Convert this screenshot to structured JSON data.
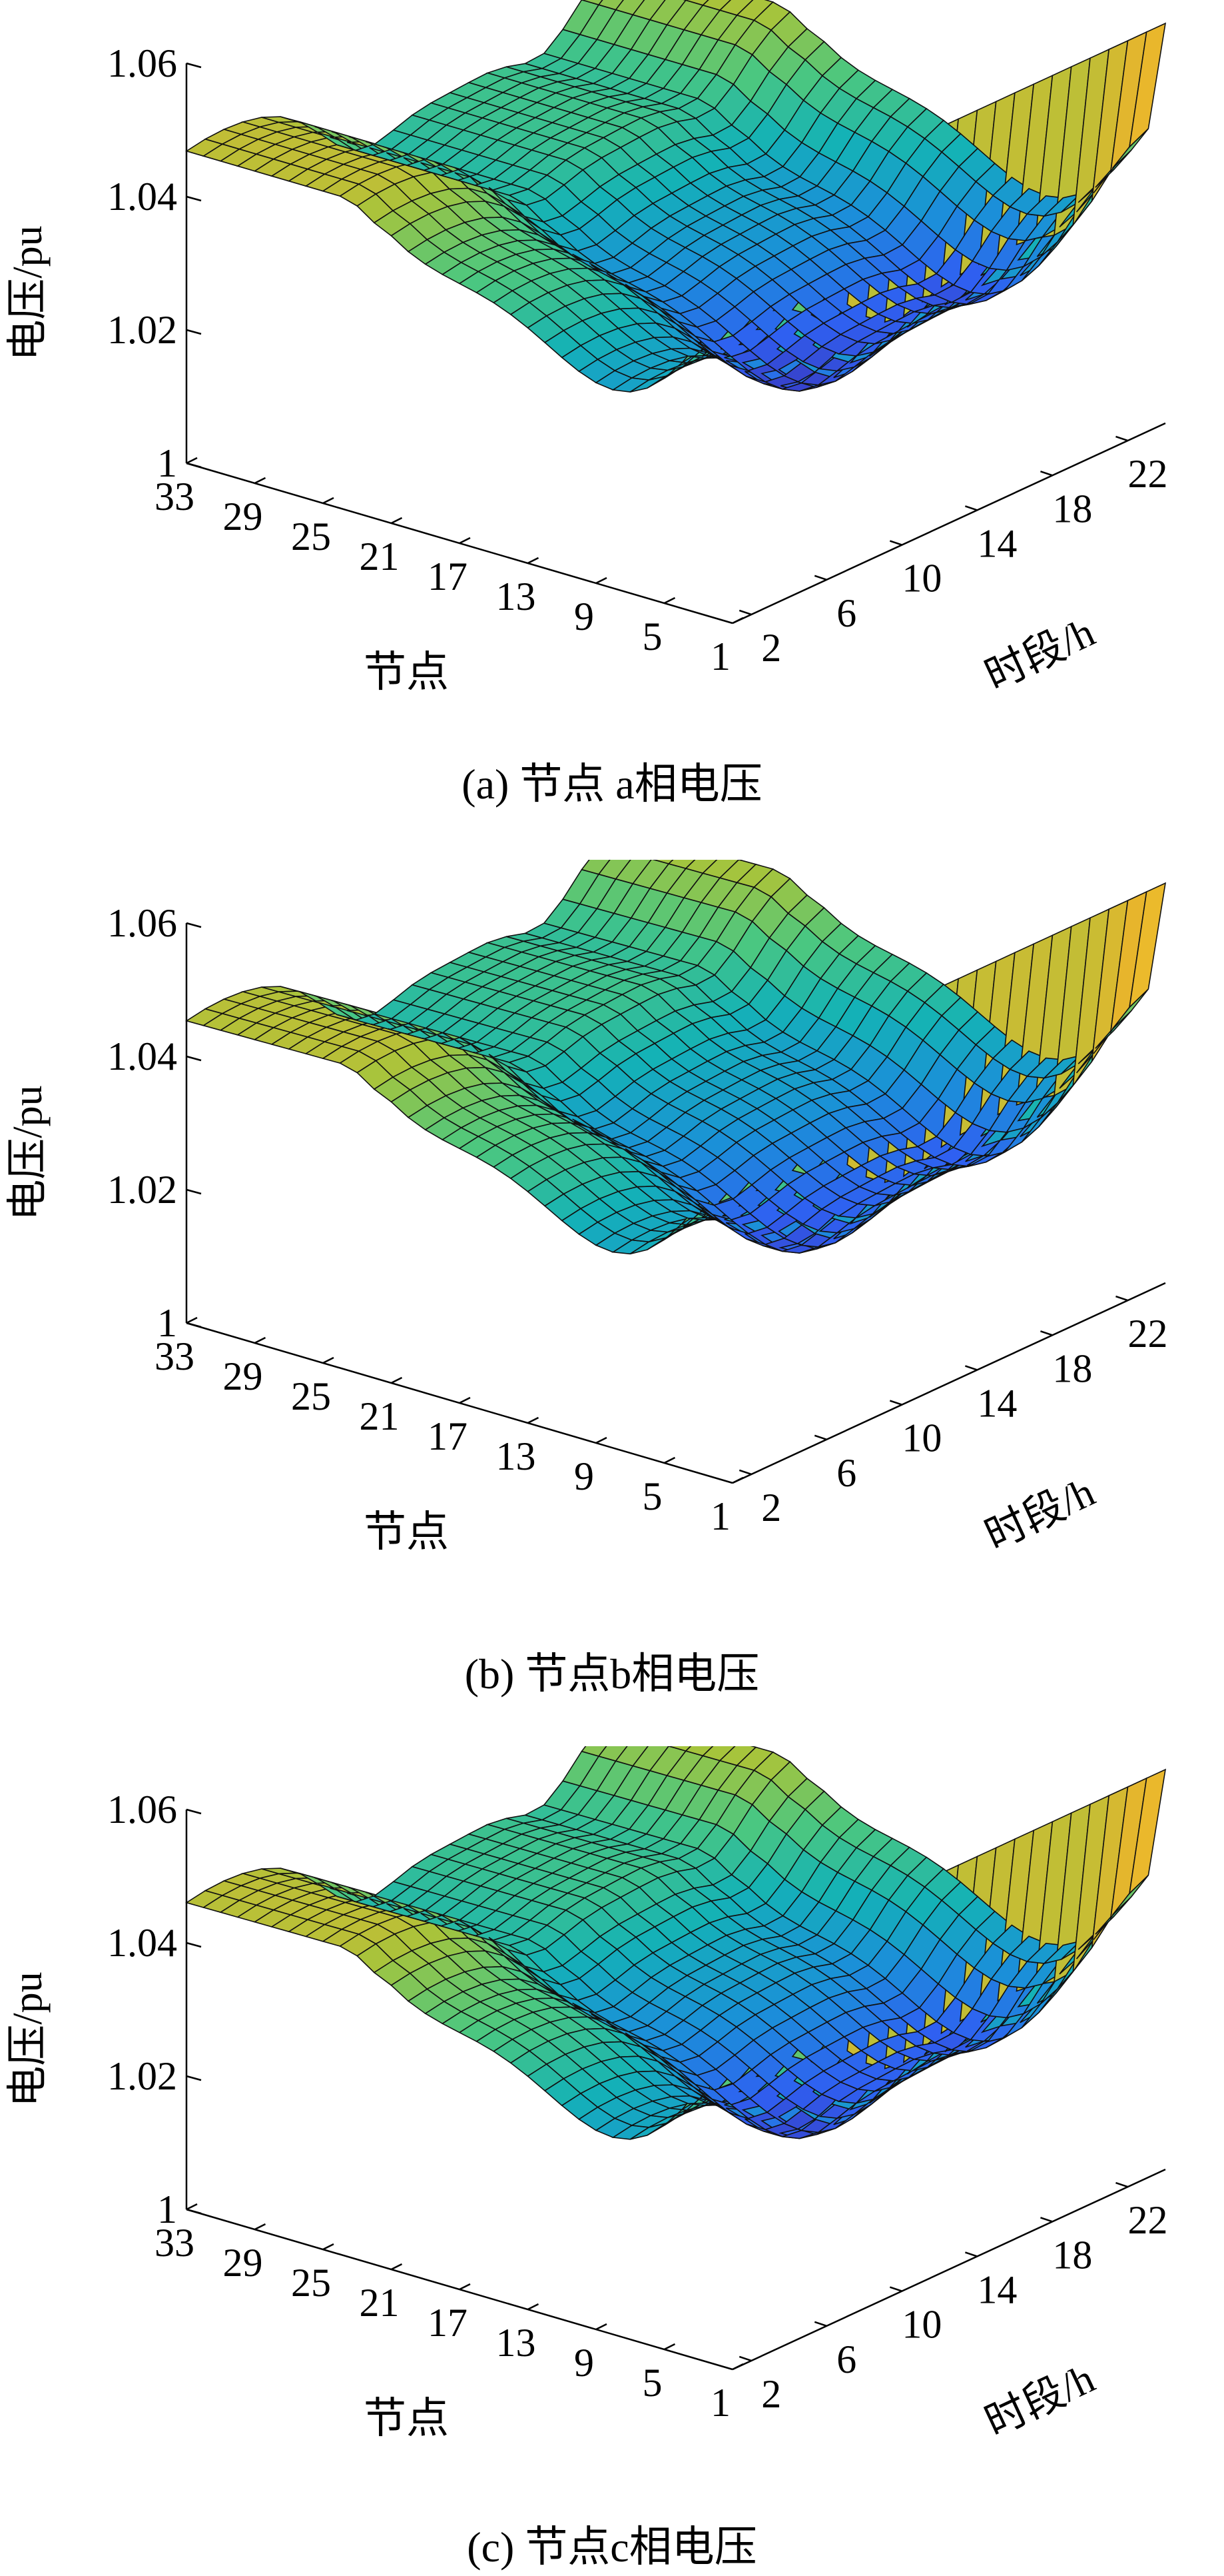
{
  "chart_data": [
    {
      "type": "surface",
      "caption": "(a) 节点 a相电压",
      "zlabel": "电压/pu",
      "xlabel": "节点",
      "ylabel": "时段/h",
      "zlim": [
        1,
        1.06
      ],
      "z_ticks": [
        "1",
        "1.02",
        "1.04",
        "1.06"
      ],
      "node_ticks": [
        "33",
        "29",
        "25",
        "21",
        "17",
        "13",
        "9",
        "5",
        "1"
      ],
      "time_ticks": [
        "2",
        "6",
        "10",
        "14",
        "18",
        "22"
      ],
      "node_range": [
        1,
        33
      ],
      "time_range": [
        1,
        24
      ],
      "voltage_at_node1": 1.06,
      "typical_min_voltage": 1.015,
      "typical_max_voltage": 1.063,
      "colormap": [
        "#3e26a8",
        "#2f60f1",
        "#1b8fd9",
        "#14b2b6",
        "#4bc780",
        "#a6c43c",
        "#e8b52c",
        "#fbd929",
        "#f9fb0e"
      ]
    },
    {
      "type": "surface",
      "caption": "(b) 节点b相电压",
      "zlabel": "电压/pu",
      "xlabel": "节点",
      "ylabel": "时段/h",
      "zlim": [
        1,
        1.06
      ],
      "z_ticks": [
        "1",
        "1.02",
        "1.04",
        "1.06"
      ],
      "node_ticks": [
        "33",
        "29",
        "25",
        "21",
        "17",
        "13",
        "9",
        "5",
        "1"
      ],
      "time_ticks": [
        "2",
        "6",
        "10",
        "14",
        "18",
        "22"
      ],
      "node_range": [
        1,
        33
      ],
      "time_range": [
        1,
        24
      ],
      "voltage_at_node1": 1.06,
      "typical_min_voltage": 1.013,
      "typical_max_voltage": 1.063,
      "colormap": [
        "#3e26a8",
        "#2f60f1",
        "#1b8fd9",
        "#14b2b6",
        "#4bc780",
        "#a6c43c",
        "#e8b52c",
        "#fbd929",
        "#f9fb0e"
      ]
    },
    {
      "type": "surface",
      "caption": "(c) 节点c相电压",
      "zlabel": "电压/pu",
      "xlabel": "节点",
      "ylabel": "时段/h",
      "zlim": [
        1,
        1.06
      ],
      "z_ticks": [
        "1",
        "1.02",
        "1.04",
        "1.06"
      ],
      "node_ticks": [
        "33",
        "29",
        "25",
        "21",
        "17",
        "13",
        "9",
        "5",
        "1"
      ],
      "time_ticks": [
        "2",
        "6",
        "10",
        "14",
        "18",
        "22"
      ],
      "node_range": [
        1,
        33
      ],
      "time_range": [
        1,
        24
      ],
      "voltage_at_node1": 1.06,
      "typical_min_voltage": 1.014,
      "typical_max_voltage": 1.063,
      "colormap": [
        "#3e26a8",
        "#2f60f1",
        "#1b8fd9",
        "#14b2b6",
        "#4bc780",
        "#a6c43c",
        "#e8b52c",
        "#fbd929",
        "#f9fb0e"
      ]
    }
  ]
}
